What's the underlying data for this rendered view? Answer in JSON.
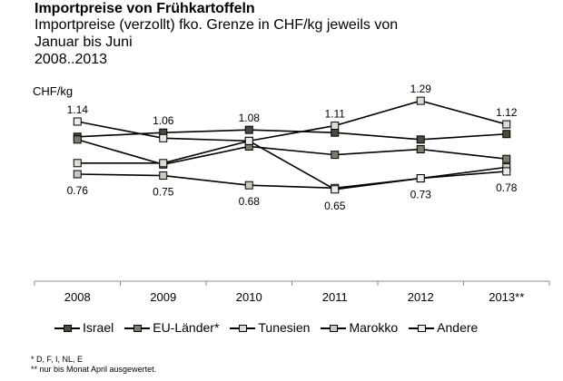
{
  "header": {
    "title": "Importpreise von Frühkartoffeln",
    "subtitle_line1": "Importpreise (verzollt) fko. Grenze in CHF/kg jeweils von",
    "subtitle_line2": "Januar bis Juni",
    "subtitle_line3": "2008..2013"
  },
  "footnotes": {
    "note1": "* D, F, I, NL, E",
    "note2": "** nur bis Monat April ausgewertet."
  },
  "chart_data": {
    "type": "line",
    "title": "Importpreise von Frühkartoffeln",
    "ylabel": "CHF/kg",
    "xlabel": "",
    "categories": [
      "2008",
      "2009",
      "2010",
      "2011",
      "2012",
      "2013**"
    ],
    "ylim": [
      0.0,
      1.4
    ],
    "grid": false,
    "legend_position": "bottom",
    "series": [
      {
        "name": "Israel",
        "marker_color": "#4a4a3c",
        "values": [
          1.03,
          1.06,
          1.08,
          1.06,
          1.01,
          1.05
        ]
      },
      {
        "name": "EU-Länder*",
        "marker_color": "#7c7c6c",
        "values": [
          1.01,
          0.83,
          0.96,
          0.9,
          0.94,
          0.87
        ]
      },
      {
        "name": "Tunesien",
        "marker_color": "#dcdcd4",
        "values": [
          0.84,
          0.84,
          1.0,
          1.11,
          1.29,
          1.12
        ]
      },
      {
        "name": "Marokko",
        "marker_color": "#c8c8bc",
        "values": [
          0.76,
          0.75,
          0.68,
          0.66,
          0.73,
          0.81
        ]
      },
      {
        "name": "Andere",
        "marker_color": "#ececec",
        "values": [
          1.14,
          1.02,
          1.0,
          0.65,
          0.73,
          0.78
        ]
      }
    ],
    "annotations": [
      {
        "category": "2008",
        "label": "1.14",
        "position": "above"
      },
      {
        "category": "2008",
        "label": "0.76",
        "position": "below"
      },
      {
        "category": "2009",
        "label": "1.06",
        "position": "above"
      },
      {
        "category": "2009",
        "label": "0.75",
        "position": "below"
      },
      {
        "category": "2010",
        "label": "1.08",
        "position": "above"
      },
      {
        "category": "2010",
        "label": "0.68",
        "position": "below"
      },
      {
        "category": "2011",
        "label": "1.11",
        "position": "above"
      },
      {
        "category": "2011",
        "label": "0.65",
        "position": "below"
      },
      {
        "category": "2012",
        "label": "1.29",
        "position": "above"
      },
      {
        "category": "2012",
        "label": "0.73",
        "position": "below"
      },
      {
        "category": "2013**",
        "label": "1.12",
        "position": "above"
      },
      {
        "category": "2013**",
        "label": "0.78",
        "position": "below"
      }
    ]
  }
}
